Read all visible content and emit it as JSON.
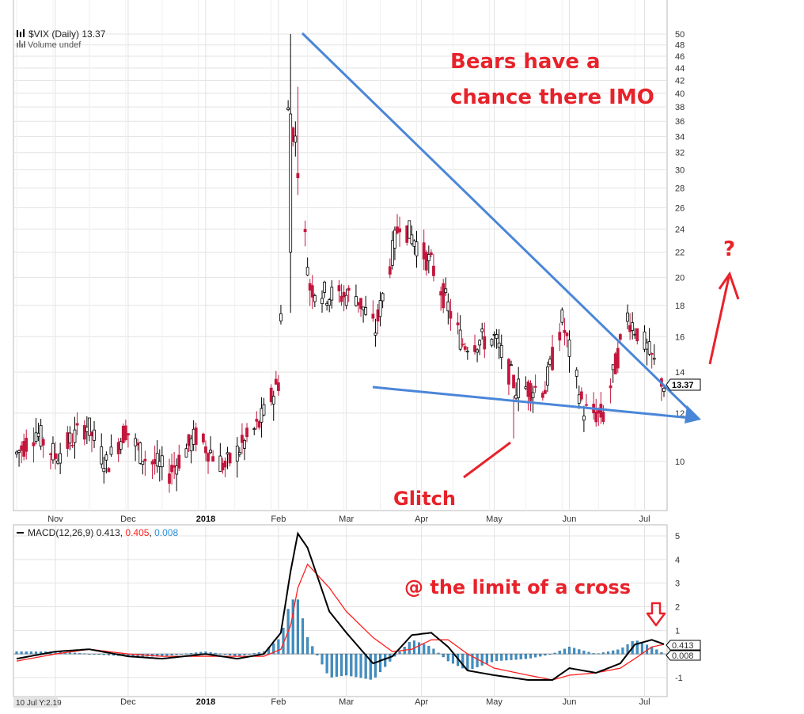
{
  "colors": {
    "up_candle": "#000000",
    "down_candle": "#c3173d",
    "grid": "#e3e3e3",
    "trendline": "#4a86d8",
    "annotation": "#e8222a",
    "macd_line": "#000000",
    "signal_line": "#ff2020",
    "histogram": "#3f8fc4"
  },
  "chart_data": [
    {
      "type": "candlestick",
      "title": "$VIX (Daily) 13.37",
      "subtitle": "Volume undef",
      "y_scale": "log",
      "ylim": [
        8.4,
        50
      ],
      "y_ticks": [
        "10",
        "12",
        "14",
        "16",
        "18",
        "20",
        "22",
        "24",
        "26",
        "28",
        "30",
        "32",
        "34",
        "36",
        "38",
        "40",
        "42",
        "44",
        "46",
        "48",
        "50"
      ],
      "x_ticks": [
        "Nov",
        "Dec",
        "2018",
        "Feb",
        "Mar",
        "Apr",
        "May",
        "Jun",
        "Jul"
      ],
      "last_price": "13.37",
      "legend_icons": [
        "candlestick-icon",
        "volume-bars-icon"
      ],
      "approx_close_path": [
        {
          "date": "2017-10-16",
          "close": 10.3
        },
        {
          "date": "2017-10-24",
          "close": 11.2
        },
        {
          "date": "2017-11-01",
          "close": 10.2
        },
        {
          "date": "2017-11-14",
          "close": 11.5
        },
        {
          "date": "2017-11-22",
          "close": 9.9
        },
        {
          "date": "2017-11-30",
          "close": 11.3
        },
        {
          "date": "2017-12-07",
          "close": 10.2
        },
        {
          "date": "2017-12-18",
          "close": 9.6
        },
        {
          "date": "2017-12-29",
          "close": 11.0
        },
        {
          "date": "2018-01-10",
          "close": 9.8
        },
        {
          "date": "2018-01-24",
          "close": 11.5
        },
        {
          "date": "2018-02-01",
          "close": 13.5
        },
        {
          "date": "2018-02-05",
          "close": 37.3
        },
        {
          "date": "2018-02-08",
          "close": 33.5
        },
        {
          "date": "2018-02-14",
          "close": 19.3
        },
        {
          "date": "2018-02-22",
          "close": 18.7
        },
        {
          "date": "2018-03-05",
          "close": 18.7
        },
        {
          "date": "2018-03-13",
          "close": 16.4
        },
        {
          "date": "2018-03-23",
          "close": 24.9
        },
        {
          "date": "2018-04-05",
          "close": 21.0
        },
        {
          "date": "2018-04-18",
          "close": 15.6
        },
        {
          "date": "2018-05-01",
          "close": 15.9
        },
        {
          "date": "2018-05-10",
          "close": 13.2
        },
        {
          "date": "2018-05-22",
          "close": 13.2
        },
        {
          "date": "2018-05-29",
          "close": 17.0
        },
        {
          "date": "2018-06-07",
          "close": 12.1
        },
        {
          "date": "2018-06-15",
          "close": 11.9
        },
        {
          "date": "2018-06-25",
          "close": 17.3
        },
        {
          "date": "2018-07-02",
          "close": 15.6
        },
        {
          "date": "2018-07-10",
          "close": 13.37
        }
      ],
      "annotations": {
        "bears": [
          "Bears have a",
          "chance there IMO"
        ],
        "question": "?",
        "glitch": "Glitch"
      }
    },
    {
      "type": "line",
      "title": "MACD(12,26,9)",
      "legend": {
        "macd": "0.413",
        "signal": "0.405",
        "histogram": "0.008"
      },
      "ylim": [
        -1.5,
        5.3
      ],
      "y_ticks": [
        "-1",
        "1",
        "2",
        "3",
        "4",
        "5"
      ],
      "x_ticks": [
        "ov",
        "Dec",
        "2018",
        "Feb",
        "Mar",
        "Apr",
        "May",
        "Jun",
        "Jul"
      ],
      "last_values": {
        "macd": "0.413",
        "histogram": "0.008"
      },
      "macd_points": [
        {
          "date": "2017-10-16",
          "v": -0.2
        },
        {
          "date": "2017-11-01",
          "v": 0.1
        },
        {
          "date": "2017-11-15",
          "v": 0.2
        },
        {
          "date": "2017-12-01",
          "v": -0.1
        },
        {
          "date": "2017-12-15",
          "v": -0.2
        },
        {
          "date": "2018-01-02",
          "v": 0.0
        },
        {
          "date": "2018-01-15",
          "v": -0.2
        },
        {
          "date": "2018-01-26",
          "v": 0.0
        },
        {
          "date": "2018-02-02",
          "v": 0.9
        },
        {
          "date": "2018-02-06",
          "v": 3.5
        },
        {
          "date": "2018-02-09",
          "v": 5.1
        },
        {
          "date": "2018-02-13",
          "v": 4.5
        },
        {
          "date": "2018-02-22",
          "v": 1.8
        },
        {
          "date": "2018-03-01",
          "v": 0.9
        },
        {
          "date": "2018-03-12",
          "v": -0.4
        },
        {
          "date": "2018-03-20",
          "v": -0.1
        },
        {
          "date": "2018-03-28",
          "v": 0.8
        },
        {
          "date": "2018-04-05",
          "v": 0.9
        },
        {
          "date": "2018-04-12",
          "v": 0.3
        },
        {
          "date": "2018-04-20",
          "v": -0.7
        },
        {
          "date": "2018-05-01",
          "v": -0.9
        },
        {
          "date": "2018-05-15",
          "v": -1.1
        },
        {
          "date": "2018-05-25",
          "v": -1.1
        },
        {
          "date": "2018-06-01",
          "v": -0.6
        },
        {
          "date": "2018-06-12",
          "v": -0.8
        },
        {
          "date": "2018-06-22",
          "v": -0.4
        },
        {
          "date": "2018-06-28",
          "v": 0.4
        },
        {
          "date": "2018-07-05",
          "v": 0.6
        },
        {
          "date": "2018-07-10",
          "v": 0.413
        }
      ],
      "signal_points": [
        {
          "date": "2017-10-16",
          "v": -0.3
        },
        {
          "date": "2017-11-01",
          "v": 0.0
        },
        {
          "date": "2017-11-15",
          "v": 0.2
        },
        {
          "date": "2017-12-01",
          "v": 0.0
        },
        {
          "date": "2017-12-15",
          "v": -0.1
        },
        {
          "date": "2018-01-02",
          "v": -0.1
        },
        {
          "date": "2018-01-15",
          "v": -0.1
        },
        {
          "date": "2018-01-26",
          "v": -0.1
        },
        {
          "date": "2018-02-02",
          "v": 0.2
        },
        {
          "date": "2018-02-06",
          "v": 1.2
        },
        {
          "date": "2018-02-09",
          "v": 2.8
        },
        {
          "date": "2018-02-13",
          "v": 3.8
        },
        {
          "date": "2018-02-22",
          "v": 2.8
        },
        {
          "date": "2018-03-01",
          "v": 1.8
        },
        {
          "date": "2018-03-12",
          "v": 0.7
        },
        {
          "date": "2018-03-20",
          "v": 0.1
        },
        {
          "date": "2018-03-28",
          "v": 0.2
        },
        {
          "date": "2018-04-05",
          "v": 0.6
        },
        {
          "date": "2018-04-12",
          "v": 0.6
        },
        {
          "date": "2018-04-20",
          "v": 0.0
        },
        {
          "date": "2018-05-01",
          "v": -0.6
        },
        {
          "date": "2018-05-15",
          "v": -0.9
        },
        {
          "date": "2018-05-25",
          "v": -1.1
        },
        {
          "date": "2018-06-01",
          "v": -0.9
        },
        {
          "date": "2018-06-12",
          "v": -0.8
        },
        {
          "date": "2018-06-22",
          "v": -0.6
        },
        {
          "date": "2018-06-28",
          "v": -0.2
        },
        {
          "date": "2018-07-05",
          "v": 0.3
        },
        {
          "date": "2018-07-10",
          "v": 0.405
        }
      ],
      "annotations": {
        "cross": "@ the limit of a cross"
      }
    }
  ],
  "footer": {
    "cursor_readout": "10 Jul Y:2.19"
  }
}
